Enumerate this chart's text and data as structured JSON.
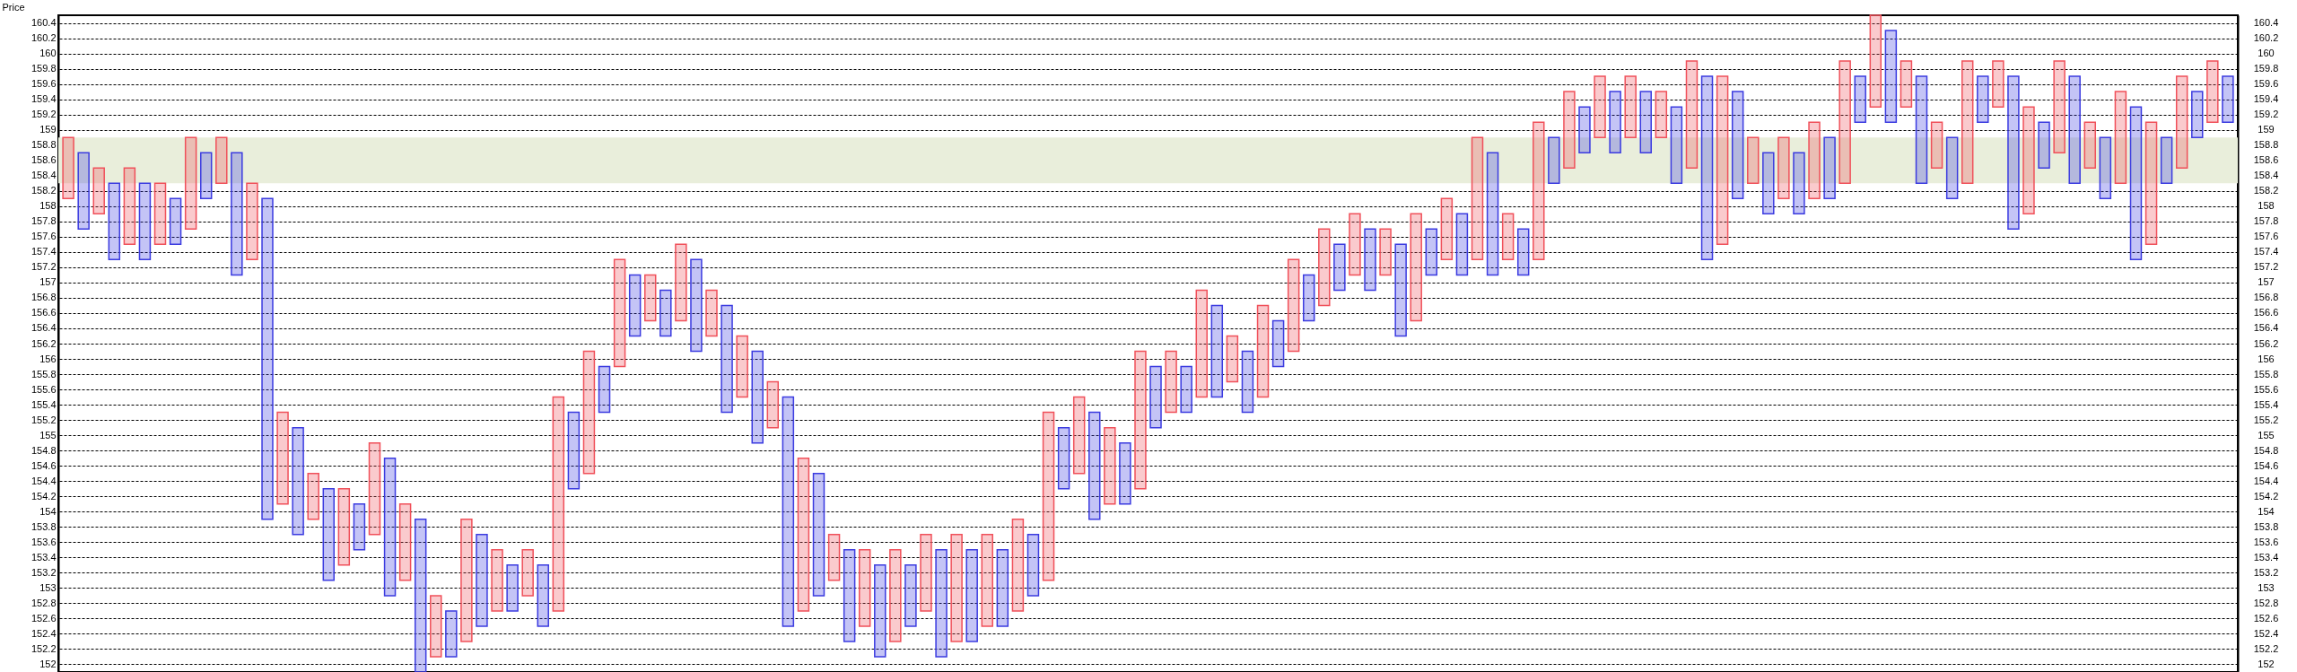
{
  "chart_data": {
    "type": "bar",
    "ylabel": "Price",
    "ylim": [
      151.9,
      160.5
    ],
    "y2lim": [
      151.9,
      160.5
    ],
    "yticks": [
      152,
      152.2,
      152.4,
      152.6,
      152.8,
      153,
      153.2,
      153.4,
      153.6,
      153.8,
      154,
      154.2,
      154.4,
      154.6,
      154.8,
      155,
      155.2,
      155.4,
      155.6,
      155.8,
      156,
      156.2,
      156.4,
      156.6,
      156.8,
      157,
      157.2,
      157.4,
      157.6,
      157.8,
      158,
      158.2,
      158.4,
      158.6,
      158.8,
      159,
      159.2,
      159.4,
      159.6,
      159.8,
      160,
      160.2,
      160.4
    ],
    "y2ticks": [
      152,
      152.2,
      152.4,
      152.6,
      152.8,
      153,
      153.2,
      153.4,
      153.6,
      153.8,
      154,
      154.2,
      154.4,
      154.6,
      154.8,
      155,
      155.2,
      155.4,
      155.6,
      155.8,
      156,
      156.2,
      156.4,
      156.6,
      156.8,
      157,
      157.2,
      157.4,
      157.6,
      157.8,
      158,
      158.2,
      158.4,
      158.6,
      158.8,
      159,
      159.2,
      159.4,
      159.6,
      159.8,
      160,
      160.2,
      160.4
    ],
    "tick_labels": "y",
    "grid": "y",
    "bands": [
      {
        "axis": "y",
        "from": 158.3,
        "to": 158.9,
        "color": "#e9eedb"
      }
    ],
    "categories": [
      null,
      null,
      null,
      null,
      null,
      null,
      null,
      null,
      null,
      null,
      null,
      null,
      null,
      null,
      null,
      null,
      null,
      null,
      null,
      null,
      null,
      null,
      null,
      null,
      null,
      null,
      null,
      null,
      null,
      null,
      null,
      null,
      null,
      null,
      null,
      null,
      null,
      null,
      null,
      null,
      null,
      null,
      null,
      null,
      null,
      null,
      null,
      null,
      null,
      null,
      null,
      null,
      null,
      null,
      null,
      null,
      null,
      null,
      null,
      null,
      null,
      null,
      null,
      null,
      null,
      null,
      null,
      null,
      null,
      null,
      null,
      null,
      null,
      null,
      null,
      null,
      null,
      null,
      null,
      null,
      null,
      null,
      null,
      null,
      null,
      null,
      null,
      null,
      null,
      null,
      null,
      null,
      null,
      null,
      null,
      null,
      null,
      null,
      null,
      null,
      null,
      null,
      null,
      null,
      null,
      null,
      null,
      null,
      null,
      null,
      null,
      null,
      null,
      null,
      null,
      null,
      null,
      null,
      null,
      null,
      null,
      null,
      null,
      null,
      null,
      null,
      null,
      null,
      null,
      null,
      null,
      null,
      null,
      null,
      null,
      null,
      null,
      null,
      null,
      null,
      null,
      null
    ],
    "base": [
      158.1,
      157.7,
      157.9,
      157.3,
      157.5,
      157.3,
      157.5,
      157.5,
      157.7,
      158.1,
      158.3,
      157.1,
      157.3,
      153.9,
      154.1,
      153.7,
      153.9,
      153.1,
      153.3,
      153.5,
      153.7,
      152.9,
      153.1,
      151.9,
      152.1,
      152.1,
      152.3,
      152.5,
      152.7,
      152.7,
      152.9,
      152.5,
      152.7,
      154.3,
      154.5,
      155.3,
      155.9,
      156.3,
      156.5,
      156.3,
      156.5,
      156.1,
      156.3,
      155.3,
      155.5,
      154.9,
      155.1,
      152.5,
      152.7,
      152.9,
      153.1,
      152.3,
      152.5,
      152.1,
      152.3,
      152.5,
      152.7,
      152.1,
      152.3,
      152.3,
      152.5,
      152.5,
      152.7,
      152.9,
      153.1,
      154.3,
      154.5,
      153.9,
      154.1,
      154.1,
      154.3,
      155.1,
      155.3,
      155.3,
      155.5,
      155.5,
      155.7,
      155.3,
      155.5,
      155.9,
      156.1,
      156.5,
      156.7,
      156.9,
      157.1,
      156.9,
      157.1,
      156.3,
      156.5,
      157.1,
      157.3,
      157.1,
      157.3,
      157.1,
      157.3,
      157.1,
      157.3,
      158.3,
      158.5,
      158.7,
      158.9,
      158.7,
      158.9,
      158.7,
      158.9,
      158.3,
      158.5,
      157.3,
      157.5,
      158.1,
      158.3,
      157.9,
      158.1,
      157.9,
      158.1,
      158.1,
      158.3,
      159.1,
      159.3,
      159.1,
      159.3,
      158.3,
      158.5,
      158.1,
      158.3,
      159.1,
      159.3,
      157.7,
      157.9,
      158.5,
      158.7,
      158.3,
      158.5,
      158.1,
      158.3,
      157.3,
      157.5,
      158.3,
      158.5,
      158.9,
      159.1,
      159.1
    ],
    "values": [
      0.8,
      1.0,
      0.6,
      1.0,
      1.0,
      1.0,
      0.8,
      0.6,
      1.2,
      0.6,
      0.6,
      1.6,
      1.0,
      4.2,
      1.2,
      1.4,
      0.6,
      1.2,
      1.0,
      0.6,
      1.2,
      1.8,
      1.0,
      2.0,
      0.8,
      0.6,
      1.6,
      1.2,
      0.8,
      0.6,
      0.6,
      0.8,
      2.8,
      1.0,
      1.6,
      0.6,
      1.4,
      0.8,
      0.6,
      0.6,
      1.0,
      1.2,
      0.6,
      1.4,
      0.8,
      1.2,
      0.6,
      3.0,
      2.0,
      1.6,
      0.6,
      1.2,
      1.0,
      1.2,
      1.2,
      0.8,
      1.0,
      1.4,
      1.4,
      1.2,
      1.2,
      1.0,
      1.2,
      0.8,
      2.2,
      0.8,
      1.0,
      1.4,
      1.0,
      0.8,
      1.8,
      0.8,
      0.8,
      0.6,
      1.4,
      1.2,
      0.6,
      0.8,
      1.2,
      0.6,
      1.2,
      0.6,
      1.0,
      0.6,
      0.8,
      0.8,
      0.6,
      1.2,
      1.4,
      0.6,
      0.8,
      0.8,
      1.6,
      1.6,
      0.6,
      0.6,
      1.8,
      0.6,
      1.0,
      0.6,
      0.8,
      0.8,
      0.8,
      0.8,
      0.6,
      1.0,
      1.4,
      2.4,
      2.2,
      1.4,
      0.6,
      0.8,
      0.8,
      0.8,
      1.0,
      0.8,
      1.6,
      0.6,
      1.2,
      1.2,
      0.6,
      1.4,
      0.6,
      0.8,
      1.6,
      0.6,
      0.6,
      2.0,
      1.4,
      0.6,
      1.2,
      1.4,
      0.6,
      0.8,
      1.2,
      2.0,
      1.6,
      0.6,
      1.2,
      0.6,
      0.8,
      0.6
    ],
    "colors": [
      "#f0505a",
      "#3b3be0",
      "#f0505a",
      "#3b3be0",
      "#f0505a",
      "#3b3be0",
      "#f0505a",
      "#3b3be0",
      "#f0505a",
      "#3b3be0",
      "#f0505a",
      "#3b3be0",
      "#f0505a",
      "#3b3be0",
      "#f0505a",
      "#3b3be0",
      "#f0505a",
      "#3b3be0",
      "#f0505a",
      "#3b3be0",
      "#f0505a",
      "#3b3be0",
      "#f0505a",
      "#3b3be0",
      "#f0505a",
      "#3b3be0",
      "#f0505a",
      "#3b3be0",
      "#f0505a",
      "#3b3be0",
      "#f0505a",
      "#3b3be0",
      "#f0505a",
      "#3b3be0",
      "#f0505a",
      "#3b3be0",
      "#f0505a",
      "#3b3be0",
      "#f0505a",
      "#3b3be0",
      "#f0505a",
      "#3b3be0",
      "#f0505a",
      "#3b3be0",
      "#f0505a",
      "#3b3be0",
      "#f0505a",
      "#3b3be0",
      "#f0505a",
      "#3b3be0",
      "#f0505a",
      "#3b3be0",
      "#f0505a",
      "#3b3be0",
      "#f0505a",
      "#3b3be0",
      "#f0505a",
      "#3b3be0",
      "#f0505a",
      "#3b3be0",
      "#f0505a",
      "#3b3be0",
      "#f0505a",
      "#3b3be0",
      "#f0505a",
      "#3b3be0",
      "#f0505a",
      "#3b3be0",
      "#f0505a",
      "#3b3be0",
      "#f0505a",
      "#3b3be0",
      "#f0505a",
      "#3b3be0",
      "#f0505a",
      "#3b3be0",
      "#f0505a",
      "#3b3be0",
      "#f0505a",
      "#3b3be0",
      "#f0505a",
      "#3b3be0",
      "#f0505a",
      "#3b3be0",
      "#f0505a",
      "#3b3be0",
      "#f0505a",
      "#3b3be0",
      "#f0505a",
      "#3b3be0",
      "#f0505a",
      "#3b3be0",
      "#f0505a",
      "#3b3be0",
      "#f0505a",
      "#3b3be0",
      "#f0505a",
      "#3b3be0",
      "#f0505a",
      "#3b3be0",
      "#f0505a",
      "#3b3be0",
      "#f0505a",
      "#3b3be0",
      "#f0505a",
      "#3b3be0",
      "#f0505a",
      "#3b3be0",
      "#f0505a",
      "#3b3be0",
      "#f0505a",
      "#3b3be0",
      "#f0505a",
      "#3b3be0",
      "#f0505a",
      "#3b3be0",
      "#f0505a",
      "#3b3be0",
      "#f0505a",
      "#3b3be0",
      "#f0505a",
      "#3b3be0",
      "#f0505a",
      "#3b3be0",
      "#f0505a",
      "#3b3be0",
      "#f0505a",
      "#3b3be0",
      "#f0505a",
      "#3b3be0",
      "#f0505a",
      "#3b3be0",
      "#f0505a",
      "#3b3be0",
      "#f0505a",
      "#3b3be0",
      "#f0505a",
      "#3b3be0",
      "#f0505a",
      "#3b3be0",
      "#f0505a",
      "#3b3be0"
    ]
  }
}
